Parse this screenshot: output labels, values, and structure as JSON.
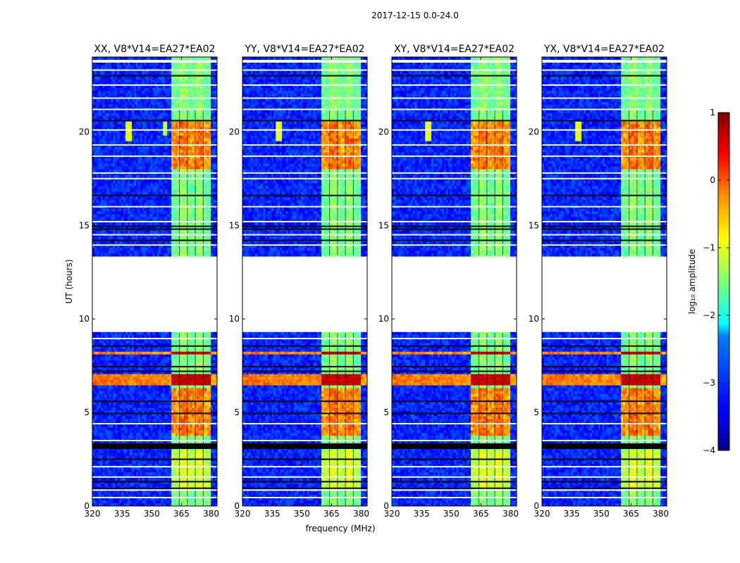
{
  "chart_data": {
    "type": "heatmap",
    "suptitle": "2017-12-15 0.0-24.0",
    "xlabel": "frequency (MHz)",
    "ylabel": "UT (hours)",
    "xlim": [
      320,
      383
    ],
    "ylim": [
      0,
      24
    ],
    "xticks": [
      {
        "value": 320,
        "label": "320"
      },
      {
        "value": 335,
        "label": "335"
      },
      {
        "value": 350,
        "label": "350"
      },
      {
        "value": 365,
        "label": "365"
      },
      {
        "value": 380,
        "label": "380"
      }
    ],
    "yticks": [
      {
        "value": 0,
        "label": "0"
      },
      {
        "value": 5,
        "label": "5"
      },
      {
        "value": 10,
        "label": "10"
      },
      {
        "value": 15,
        "label": "15"
      },
      {
        "value": 20,
        "label": "20"
      }
    ],
    "panels": [
      {
        "id": "xx",
        "title": "XX, V8*V14=EA27*EA02"
      },
      {
        "id": "yy",
        "title": "YY, V8*V14=EA27*EA02"
      },
      {
        "id": "xy",
        "title": "XY, V8*V14=EA27*EA02"
      },
      {
        "id": "yx",
        "title": "YX, V8*V14=EA27*EA02"
      }
    ],
    "colorbar": {
      "label": "log₁₀ amplitude",
      "range": [
        -4,
        1
      ],
      "ticks": [
        {
          "value": 1,
          "label": "1"
        },
        {
          "value": 0,
          "label": "0"
        },
        {
          "value": -1,
          "label": "−1"
        },
        {
          "value": -2,
          "label": "−2"
        },
        {
          "value": -3,
          "label": "−3"
        },
        {
          "value": -4,
          "label": "−4"
        }
      ],
      "colormap": "jet"
    },
    "data_gaps_hours": [
      [
        9.25,
        13.4
      ]
    ],
    "rfi_band_mhz": [
      360,
      380
    ],
    "strong_rfi_hours": [
      [
        6.5,
        7.0
      ],
      [
        8.1,
        8.3
      ]
    ],
    "background_level": -3.2,
    "rfi_band_level": -1.6
  }
}
